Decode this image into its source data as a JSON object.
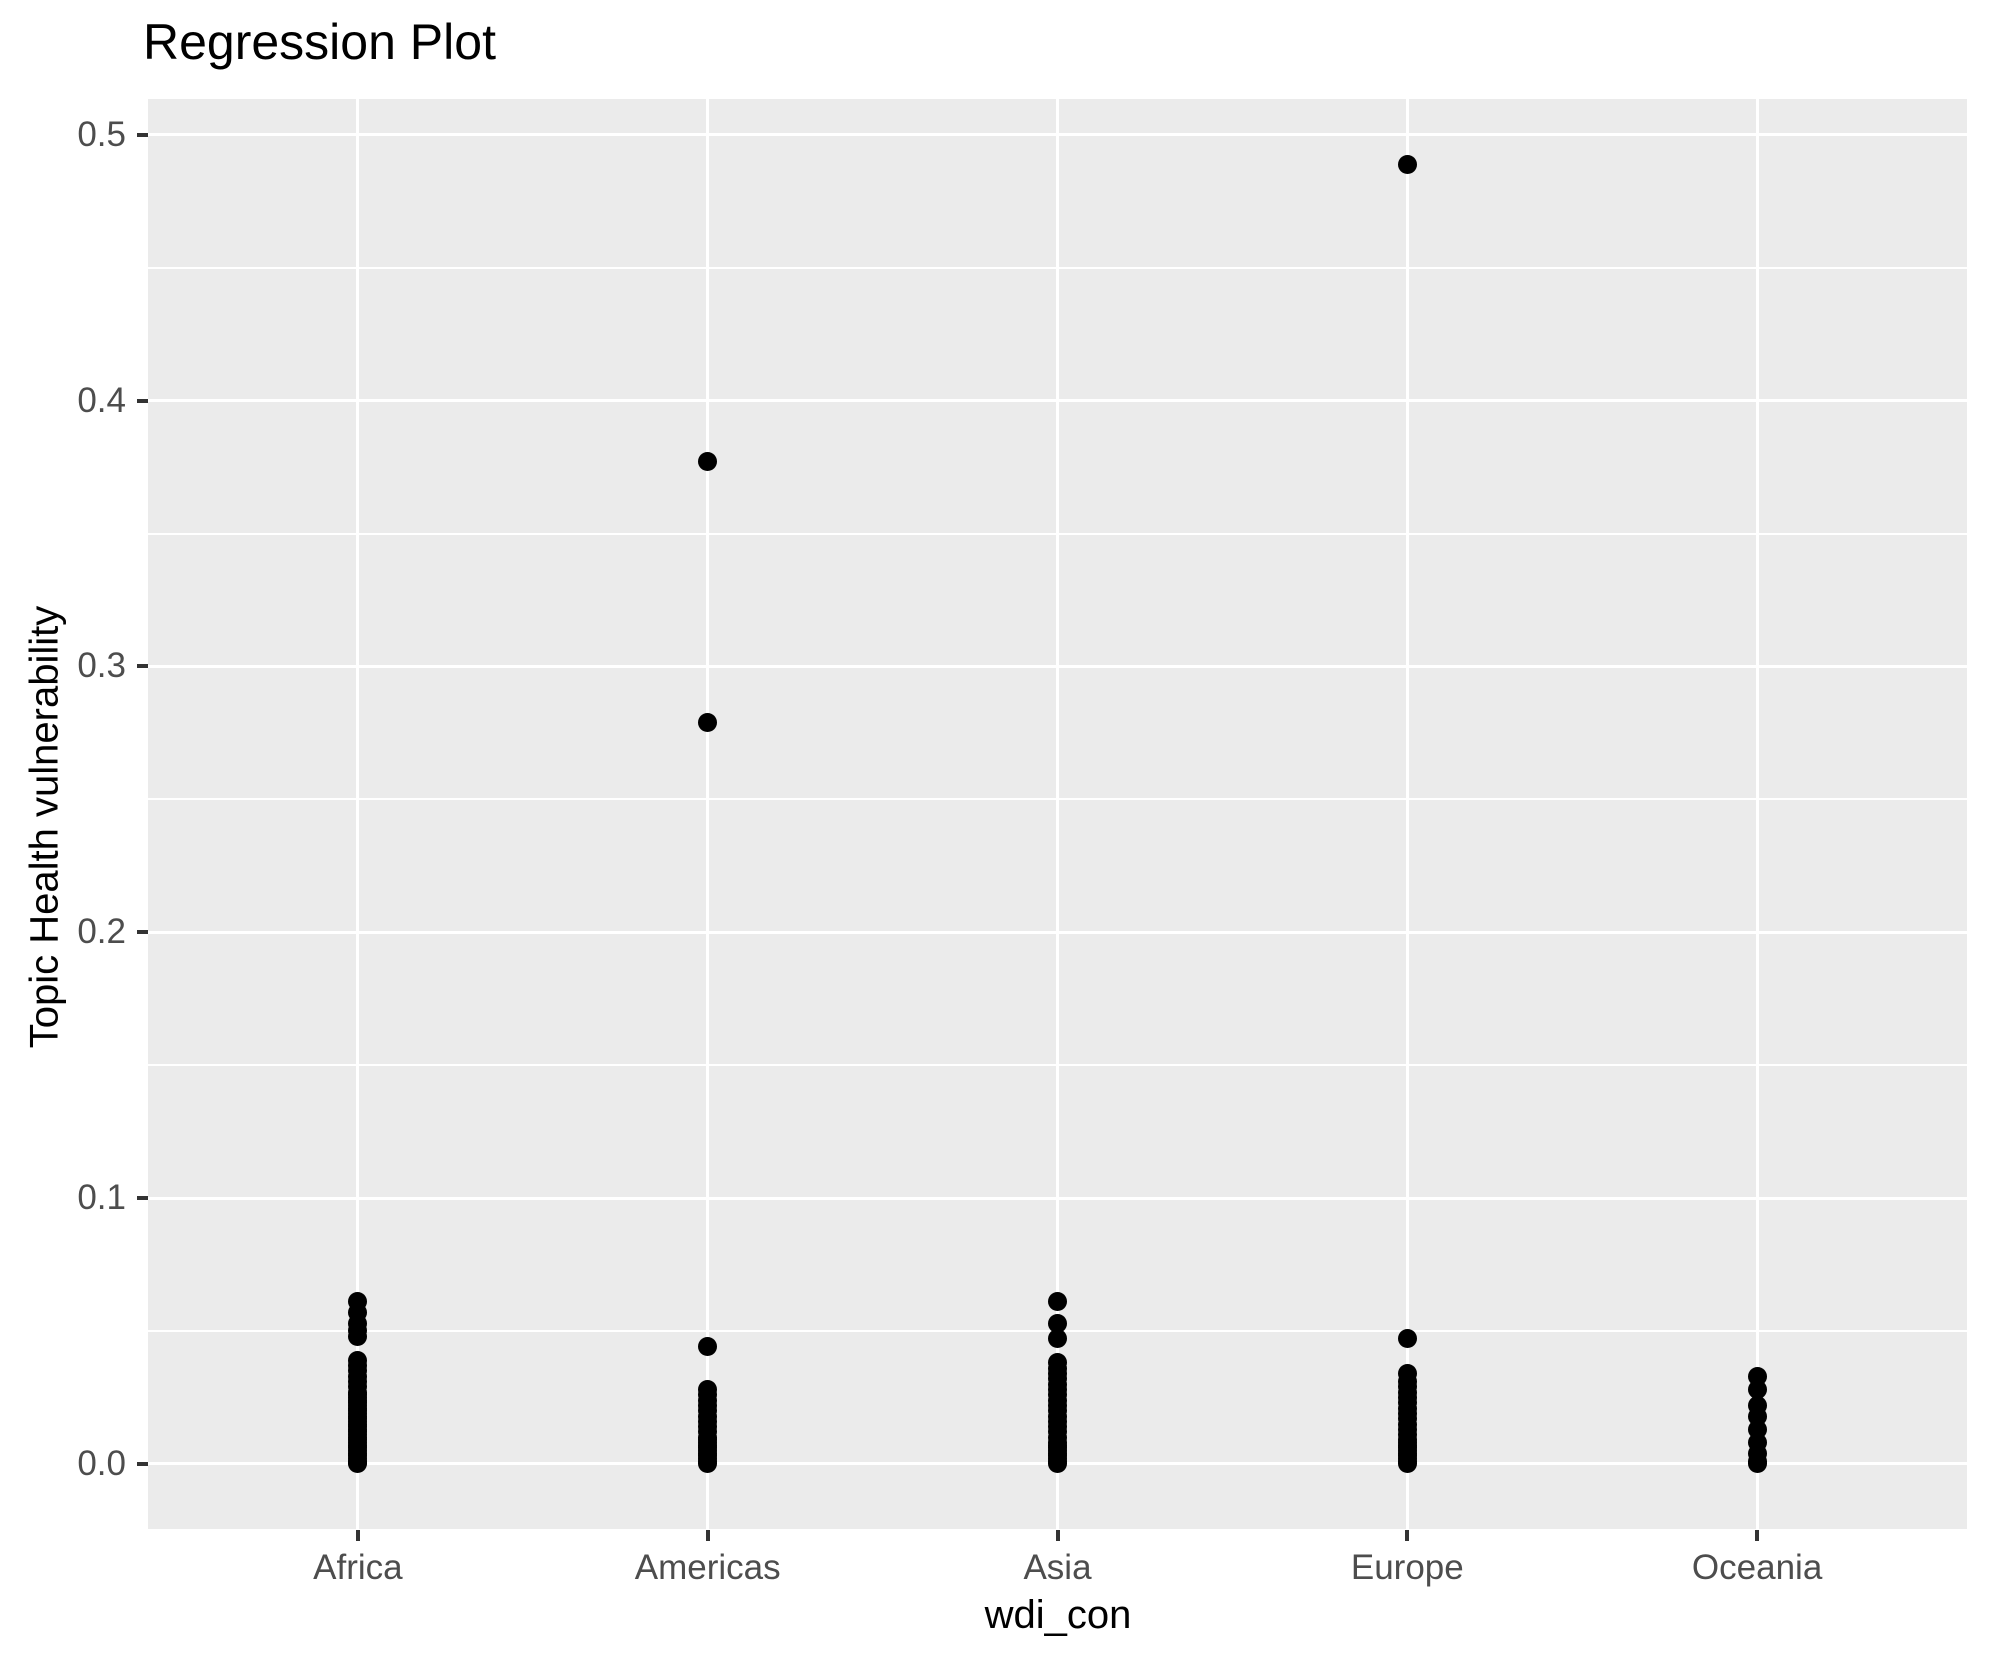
{
  "title": "Regression Plot",
  "x_axis": {
    "label": "wdi_con",
    "categories": [
      "Africa",
      "Americas",
      "Asia",
      "Europe",
      "Oceania"
    ]
  },
  "y_axis": {
    "label": "Topic Health vulnerability",
    "tick_values": [
      0.0,
      0.1,
      0.2,
      0.3,
      0.4,
      0.5
    ],
    "tick_labels": [
      "0.0",
      "0.1",
      "0.2",
      "0.3",
      "0.4",
      "0.5"
    ],
    "minor_tick_values": [
      0.05,
      0.15,
      0.25,
      0.35,
      0.45
    ]
  },
  "colors": {
    "panel_background": "#EBEBEB",
    "gridline": "#FFFFFF",
    "tick_mark": "#333333",
    "tick_label": "#4D4D4D",
    "point": "#000000",
    "text": "#000000"
  },
  "chart_data": {
    "type": "scatter",
    "subtype": "strip-plot-categorical",
    "title": "Regression Plot",
    "xlabel": "wdi_con",
    "ylabel": "Topic Health vulnerability",
    "categories": [
      "Africa",
      "Americas",
      "Asia",
      "Europe",
      "Oceania"
    ],
    "ylim": [
      -0.0245,
      0.5135
    ],
    "grid": "major+minor",
    "legend": "none",
    "point_color": "#000000",
    "series": [
      {
        "name": "Africa",
        "values": [
          0.061,
          0.057,
          0.053,
          0.05,
          0.048,
          0.039,
          0.037,
          0.035,
          0.033,
          0.031,
          0.029,
          0.027,
          0.026,
          0.025,
          0.024,
          0.023,
          0.022,
          0.021,
          0.02,
          0.019,
          0.018,
          0.017,
          0.016,
          0.015,
          0.014,
          0.013,
          0.012,
          0.011,
          0.01,
          0.009,
          0.008,
          0.007,
          0.006,
          0.005,
          0.004,
          0.003,
          0.002,
          0.001,
          0.0005,
          0.0
        ]
      },
      {
        "name": "Americas",
        "values": [
          0.377,
          0.279,
          0.044,
          0.028,
          0.026,
          0.024,
          0.022,
          0.02,
          0.018,
          0.016,
          0.014,
          0.012,
          0.01,
          0.009,
          0.008,
          0.007,
          0.006,
          0.005,
          0.004,
          0.003,
          0.002,
          0.001,
          0.0
        ]
      },
      {
        "name": "Asia",
        "values": [
          0.061,
          0.053,
          0.047,
          0.038,
          0.036,
          0.034,
          0.032,
          0.03,
          0.028,
          0.026,
          0.024,
          0.022,
          0.02,
          0.018,
          0.016,
          0.014,
          0.012,
          0.01,
          0.008,
          0.007,
          0.006,
          0.005,
          0.004,
          0.003,
          0.002,
          0.001,
          0.0
        ]
      },
      {
        "name": "Europe",
        "values": [
          0.489,
          0.047,
          0.034,
          0.031,
          0.029,
          0.027,
          0.025,
          0.023,
          0.021,
          0.019,
          0.017,
          0.015,
          0.013,
          0.011,
          0.009,
          0.008,
          0.007,
          0.006,
          0.005,
          0.004,
          0.003,
          0.002,
          0.001,
          0.0
        ]
      },
      {
        "name": "Oceania",
        "values": [
          0.033,
          0.028,
          0.022,
          0.018,
          0.013,
          0.008,
          0.004,
          0.001,
          0.0
        ]
      }
    ]
  }
}
